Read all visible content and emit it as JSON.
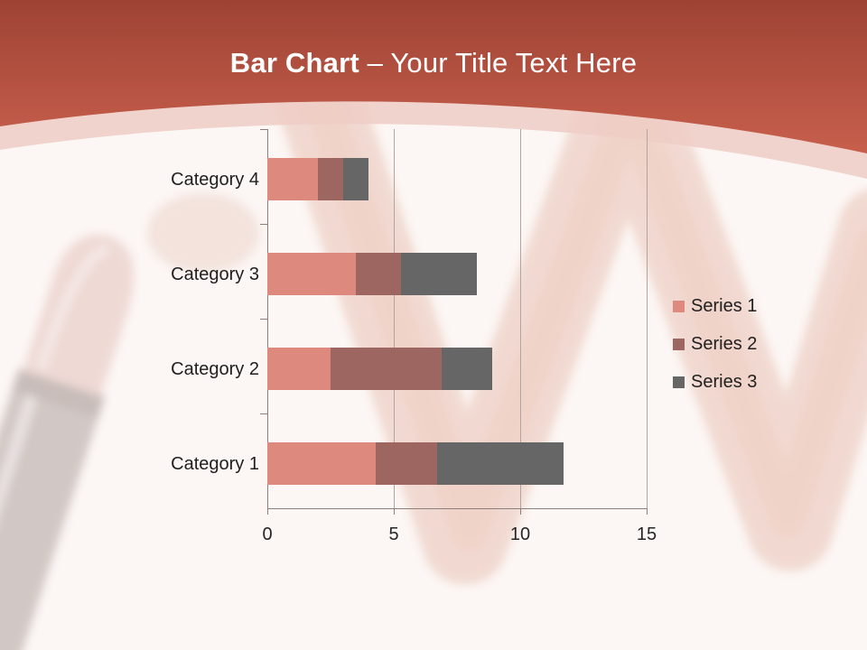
{
  "slide": {
    "title_bold": "Bar Chart",
    "title_rest": " – Your Title Text Here"
  },
  "theme": {
    "header_gradient_top": "#9e4334",
    "header_gradient_bottom": "#c85f4d",
    "header_band_color": "#efcdc6",
    "body_bg": "#fcf6f4",
    "text_color": "#1f1f1f",
    "grid_color": "#b2a4a0",
    "axis_color": "#8f7f7a"
  },
  "chart_data": {
    "type": "bar",
    "orientation": "horizontal",
    "stacked": true,
    "title": "",
    "xlabel": "",
    "ylabel": "",
    "categories_top_to_bottom": [
      "Category 4",
      "Category 3",
      "Category 2",
      "Category 1"
    ],
    "series": [
      {
        "name": "Series 1",
        "color": "#dd897d",
        "values_top_to_bottom": [
          2,
          3.5,
          2.5,
          4.3
        ]
      },
      {
        "name": "Series 2",
        "color": "#9d6660",
        "values_top_to_bottom": [
          1,
          1.8,
          4.4,
          2.4
        ]
      },
      {
        "name": "Series 3",
        "color": "#666666",
        "values_top_to_bottom": [
          1,
          3,
          2,
          5
        ]
      }
    ],
    "x_ticks": [
      0,
      5,
      10,
      15
    ],
    "xlim": [
      0,
      15
    ],
    "grid": true,
    "legend_position": "right"
  }
}
